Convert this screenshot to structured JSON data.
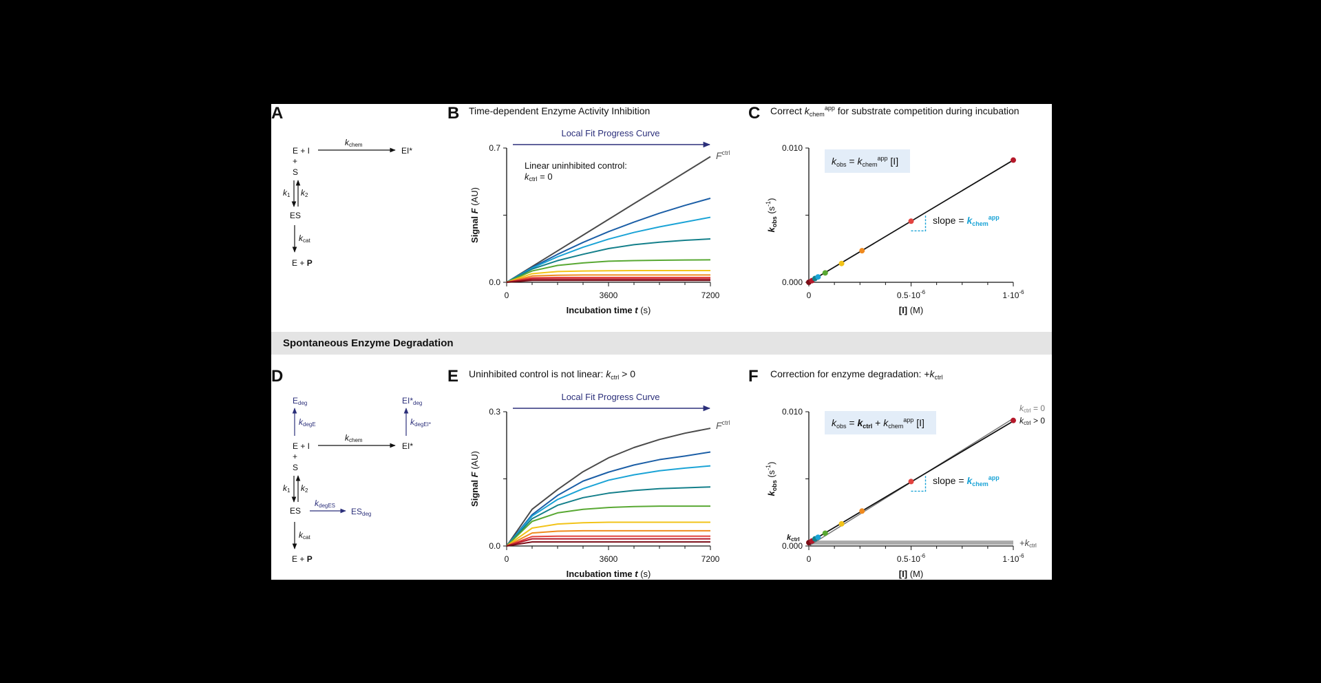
{
  "colors": {
    "navy": "#2b2f7a",
    "accent": "#1aa3d6",
    "box": "#e3edf8",
    "ctrl": "#4a4a4a",
    "band": "#e4e4e4",
    "palette": [
      "#4a4a4a",
      "#1b5ea6",
      "#1aa3d6",
      "#137f8a",
      "#58a832",
      "#f2c318",
      "#ef8a1f",
      "#e2433f",
      "#b5192a",
      "#7a0d17"
    ]
  },
  "section_band": {
    "label": "Spontaneous Enzyme Degradation"
  },
  "panels": {
    "A": {
      "letter": "A",
      "scheme": {
        "e_plus_i": "E + I",
        "ei_star": "EI*",
        "plus": "+",
        "s": "S",
        "es": "ES",
        "e_plus": "E + ",
        "p": "P",
        "k_chem": "k",
        "k_chem_sub": "chem",
        "k1": "k",
        "k1_sub": "1",
        "k2": "k",
        "k2_sub": "2",
        "kcat": "k",
        "kcat_sub": "cat"
      }
    },
    "B": {
      "letter": "B",
      "title": "Time-dependent Enzyme Activity Inhibition",
      "progress_label": "Local Fit Progress Curve",
      "annotation_line1": "Linear uninhibited control:",
      "annotation_line2_k": "k",
      "annotation_line2_sub": "ctrl",
      "annotation_line2_rest": " = 0",
      "curve_label": "F",
      "curve_label_sup": "ctrl"
    },
    "C": {
      "letter": "C",
      "title_pre": "Correct ",
      "title_k": "k",
      "title_sub": "chem",
      "title_sup": "app",
      "title_post": " for substrate competition during incubation",
      "equation": {
        "k": "k",
        "obs": "obs",
        "eq": " = ",
        "k2": "k",
        "chem": "chem",
        "app": "app",
        "i": " [I]"
      },
      "slope_pre": "slope = ",
      "slope_k": "k",
      "slope_sub": "chem",
      "slope_sup": "app"
    },
    "D": {
      "letter": "D",
      "scheme": {
        "e_deg": "E",
        "e_deg_sub": "deg",
        "ei_deg": "EI*",
        "ei_deg_sub": "deg",
        "k_dege": "k",
        "k_dege_sub": "degE",
        "k_degei": "k",
        "k_degei_sub": "degEI*",
        "e_plus_i": "E + I",
        "ei_star": "EI*",
        "plus": "+",
        "s": "S",
        "es": "ES",
        "k_chem": "k",
        "k_chem_sub": "chem",
        "k_deges": "k",
        "k_deges_sub": "degES",
        "es_deg": "ES",
        "es_deg_sub": "deg",
        "k1": "k",
        "k1_sub": "1",
        "k2": "k",
        "k2_sub": "2",
        "kcat": "k",
        "kcat_sub": "cat",
        "e_plus": "E + ",
        "p": "P"
      }
    },
    "E": {
      "letter": "E",
      "title_pre": "Uninhibited control is not linear: ",
      "title_k": "k",
      "title_sub": "ctrl",
      "title_post": " > 0",
      "progress_label": "Local Fit Progress Curve",
      "curve_label": "F",
      "curve_label_sup": "ctrl"
    },
    "F": {
      "letter": "F",
      "title_pre": "Correction for enzyme degradation: +",
      "title_k": "k",
      "title_sub": "ctrl",
      "equation": {
        "k": "k",
        "obs": "obs",
        "eq": " = ",
        "kctrl": "k",
        "ctrl": "ctrl",
        "plus": " + ",
        "k2": "k",
        "chem": "chem",
        "app": "app",
        "i": " [I]"
      },
      "slope_pre": "slope = ",
      "slope_k": "k",
      "slope_sub": "chem",
      "slope_sup": "app",
      "legend_ctrl0_k": "k",
      "legend_ctrl0_sub": "ctrl",
      "legend_ctrl0_rest": " = 0",
      "legend_ctrlpos_k": "k",
      "legend_ctrlpos_sub": "ctrl",
      "legend_ctrlpos_rest": " > 0",
      "plus_kctrl": "+",
      "plus_kctrl_k": "k",
      "plus_kctrl_sub": "ctrl",
      "kctrl_axis_k": "k",
      "kctrl_axis_sub": "ctrl"
    }
  },
  "chart_data": [
    {
      "id": "B",
      "type": "line",
      "xlabel": "Incubation time t (s)",
      "xlabel_pre": "Incubation time ",
      "xlabel_var": "t",
      "xlabel_post": " (s)",
      "ylabel": "Signal F (AU)",
      "ylabel_pre": "Signal ",
      "ylabel_var": "F",
      "ylabel_post": " (AU)",
      "xlim": [
        0,
        7200
      ],
      "ylim": [
        0,
        0.7
      ],
      "xticks": [
        "0",
        "3600",
        "7200"
      ],
      "xtick_values": [
        0,
        3600,
        7200
      ],
      "yticks": [
        "0.0",
        "0.7"
      ],
      "ytick_values": [
        0,
        0.7
      ],
      "model": "F = v0*(1-exp(-kobs*t))/kobs, v0 = 0.000091",
      "kobs": [
        0,
        0.00012,
        0.00021,
        0.00039,
        0.00078,
        0.0015,
        0.0024,
        0.0036,
        0.0053,
        0.009
      ],
      "x": [
        0,
        900,
        1800,
        2700,
        3600,
        4500,
        5400,
        6300,
        7200
      ],
      "series": [
        {
          "values": [
            0,
            0.082,
            0.164,
            0.246,
            0.328,
            0.41,
            0.491,
            0.573,
            0.655
          ]
        },
        {
          "values": [
            0,
            0.077,
            0.146,
            0.208,
            0.264,
            0.314,
            0.36,
            0.401,
            0.438
          ]
        },
        {
          "values": [
            0,
            0.074,
            0.133,
            0.183,
            0.225,
            0.26,
            0.289,
            0.314,
            0.339
          ]
        },
        {
          "values": [
            0,
            0.069,
            0.113,
            0.146,
            0.176,
            0.196,
            0.209,
            0.219,
            0.226
          ]
        },
        {
          "values": [
            0,
            0.059,
            0.088,
            0.101,
            0.11,
            0.113,
            0.115,
            0.116,
            0.117
          ]
        },
        {
          "values": [
            0,
            0.045,
            0.056,
            0.059,
            0.06,
            0.061,
            0.061,
            0.061,
            0.061
          ]
        },
        {
          "values": [
            0,
            0.033,
            0.037,
            0.038,
            0.038,
            0.038,
            0.038,
            0.038,
            0.038
          ]
        },
        {
          "values": [
            0,
            0.024,
            0.025,
            0.025,
            0.025,
            0.025,
            0.025,
            0.025,
            0.025
          ]
        },
        {
          "values": [
            0,
            0.017,
            0.017,
            0.017,
            0.017,
            0.017,
            0.017,
            0.017,
            0.017
          ]
        },
        {
          "values": [
            0,
            0.01,
            0.01,
            0.01,
            0.01,
            0.01,
            0.01,
            0.01,
            0.01
          ]
        }
      ]
    },
    {
      "id": "C",
      "type": "scatter",
      "xlabel": "[I] (M)",
      "xlabel_bold": "[I]",
      "xlabel_unit": " (M)",
      "ylabel": "kobs (s-1)",
      "ylabel_k": "k",
      "ylabel_sub": "obs",
      "ylabel_unit": " (s",
      "ylabel_sup": "-1",
      "ylabel_close": ")",
      "xlim": [
        0,
        1e-06
      ],
      "ylim": [
        0,
        0.01
      ],
      "xticks": [
        "0",
        "0.5·10",
        "1·10"
      ],
      "xtick_sup": "-6",
      "xtick_values": [
        0,
        5e-07,
        1e-06
      ],
      "yticks": [
        "0.000",
        "0.010"
      ],
      "ytick_values": [
        0,
        0.01
      ],
      "x": [
        0,
        1.5e-08,
        3e-08,
        4.5e-08,
        8e-08,
        1.6e-07,
        2.6e-07,
        5e-07,
        1e-06
      ],
      "values": [
        0,
        0.00012,
        0.00028,
        0.0004,
        0.0007,
        0.0014,
        0.00235,
        0.00455,
        0.0091
      ],
      "line": {
        "x": [
          0,
          1e-06
        ],
        "y": [
          0,
          0.0091
        ]
      }
    },
    {
      "id": "E",
      "type": "line",
      "xlabel": "Incubation time t (s)",
      "xlabel_pre": "Incubation time ",
      "xlabel_var": "t",
      "xlabel_post": " (s)",
      "ylabel": "Signal F (AU)",
      "ylabel_pre": "Signal ",
      "ylabel_var": "F",
      "ylabel_post": " (AU)",
      "xlim": [
        0,
        7200
      ],
      "ylim": [
        0,
        0.3
      ],
      "xticks": [
        "0",
        "3600",
        "7200"
      ],
      "xtick_values": [
        0,
        3600,
        7200
      ],
      "yticks": [
        "0.0",
        "0.3"
      ],
      "ytick_values": [
        0,
        0.3
      ],
      "model": "F = v0*(1-exp(-kobs*t))/kobs, v0 = 0.000091, kctrl = 0.00025",
      "x": [
        0,
        900,
        1800,
        2700,
        3600,
        4500,
        5400,
        6300,
        7200
      ],
      "series": [
        {
          "values": [
            0,
            0.082,
            0.126,
            0.166,
            0.197,
            0.22,
            0.238,
            0.252,
            0.263
          ]
        },
        {
          "values": [
            0,
            0.07,
            0.113,
            0.145,
            0.165,
            0.181,
            0.193,
            0.201,
            0.21
          ]
        },
        {
          "values": [
            0,
            0.067,
            0.104,
            0.128,
            0.147,
            0.159,
            0.168,
            0.174,
            0.179
          ]
        },
        {
          "values": [
            0,
            0.061,
            0.091,
            0.108,
            0.118,
            0.124,
            0.128,
            0.13,
            0.132
          ]
        },
        {
          "values": [
            0,
            0.055,
            0.074,
            0.082,
            0.086,
            0.088,
            0.089,
            0.089,
            0.089
          ]
        },
        {
          "values": [
            0,
            0.04,
            0.049,
            0.052,
            0.053,
            0.053,
            0.053,
            0.053,
            0.053
          ]
        },
        {
          "values": [
            0,
            0.029,
            0.033,
            0.034,
            0.034,
            0.034,
            0.034,
            0.034,
            0.034
          ]
        },
        {
          "values": [
            0,
            0.021,
            0.022,
            0.022,
            0.022,
            0.022,
            0.022,
            0.022,
            0.022
          ]
        },
        {
          "values": [
            0,
            0.016,
            0.016,
            0.016,
            0.016,
            0.016,
            0.016,
            0.016,
            0.016
          ]
        },
        {
          "values": [
            0,
            0.009,
            0.009,
            0.009,
            0.009,
            0.009,
            0.009,
            0.009,
            0.009
          ]
        }
      ]
    },
    {
      "id": "F",
      "type": "scatter",
      "xlabel": "[I] (M)",
      "xlabel_bold": "[I]",
      "xlabel_unit": " (M)",
      "ylabel": "kobs (s-1)",
      "ylabel_k": "k",
      "ylabel_sub": "obs",
      "ylabel_unit": " (s",
      "ylabel_sup": "-1",
      "ylabel_close": ")",
      "xlim": [
        0,
        1e-06
      ],
      "ylim": [
        0,
        0.01
      ],
      "xticks": [
        "0",
        "0.5·10",
        "1·10"
      ],
      "xtick_sup": "-6",
      "xtick_values": [
        0,
        5e-07,
        1e-06
      ],
      "yticks": [
        "0.000",
        "0.010"
      ],
      "ytick_values": [
        0,
        0.01
      ],
      "kctrl": 0.00025,
      "x": [
        0,
        1.5e-08,
        3e-08,
        4.5e-08,
        8e-08,
        1.6e-07,
        2.6e-07,
        5e-07,
        1e-06
      ],
      "values": [
        0.00025,
        0.00037,
        0.00053,
        0.00065,
        0.00095,
        0.00165,
        0.0026,
        0.0048,
        0.00935
      ],
      "line_ctrl_pos": {
        "x": [
          0,
          1e-06
        ],
        "y": [
          0.00025,
          0.0093
        ]
      },
      "line_ctrl_0": {
        "x": [
          0,
          1e-06
        ],
        "y": [
          0,
          0.0095
        ]
      }
    }
  ]
}
